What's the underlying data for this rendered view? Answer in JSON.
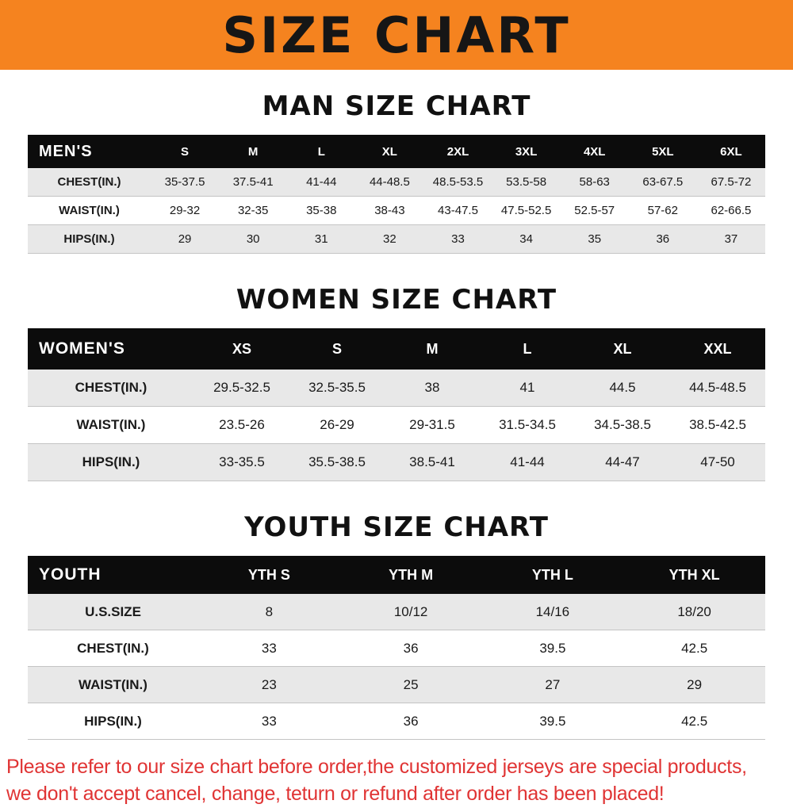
{
  "banner": {
    "title": "SIZE CHART",
    "background_color": "#f5831f"
  },
  "sections": [
    {
      "id": "mens",
      "title": "MAN SIZE CHART",
      "table": {
        "header_label": "MEN'S",
        "columns": [
          "S",
          "M",
          "L",
          "XL",
          "2XL",
          "3XL",
          "4XL",
          "5XL",
          "6XL"
        ],
        "rows": [
          {
            "label": "CHEST(IN.)",
            "values": [
              "35-37.5",
              "37.5-41",
              "41-44",
              "44-48.5",
              "48.5-53.5",
              "53.5-58",
              "58-63",
              "63-67.5",
              "67.5-72"
            ]
          },
          {
            "label": "WAIST(IN.)",
            "values": [
              "29-32",
              "32-35",
              "35-38",
              "38-43",
              "43-47.5",
              "47.5-52.5",
              "52.5-57",
              "57-62",
              "62-66.5"
            ]
          },
          {
            "label": "HIPS(IN.)",
            "values": [
              "29",
              "30",
              "31",
              "32",
              "33",
              "34",
              "35",
              "36",
              "37"
            ]
          }
        ]
      }
    },
    {
      "id": "womens",
      "title": "WOMEN SIZE CHART",
      "table": {
        "header_label": "WOMEN'S",
        "columns": [
          "XS",
          "S",
          "M",
          "L",
          "XL",
          "XXL"
        ],
        "rows": [
          {
            "label": "CHEST(IN.)",
            "values": [
              "29.5-32.5",
              "32.5-35.5",
              "38",
              "41",
              "44.5",
              "44.5-48.5"
            ]
          },
          {
            "label": "WAIST(IN.)",
            "values": [
              "23.5-26",
              "26-29",
              "29-31.5",
              "31.5-34.5",
              "34.5-38.5",
              "38.5-42.5"
            ]
          },
          {
            "label": "HIPS(IN.)",
            "values": [
              "33-35.5",
              "35.5-38.5",
              "38.5-41",
              "41-44",
              "44-47",
              "47-50"
            ]
          }
        ]
      }
    },
    {
      "id": "youth",
      "title": "YOUTH SIZE CHART",
      "table": {
        "header_label": "YOUTH",
        "columns": [
          "YTH S",
          "YTH M",
          "YTH L",
          "YTH XL"
        ],
        "rows": [
          {
            "label": "U.S.SIZE",
            "values": [
              "8",
              "10/12",
              "14/16",
              "18/20"
            ]
          },
          {
            "label": "CHEST(IN.)",
            "values": [
              "33",
              "36",
              "39.5",
              "42.5"
            ]
          },
          {
            "label": "WAIST(IN.)",
            "values": [
              "23",
              "25",
              "27",
              "29"
            ]
          },
          {
            "label": "HIPS(IN.)",
            "values": [
              "33",
              "36",
              "39.5",
              "42.5"
            ]
          }
        ]
      }
    }
  ],
  "footer": {
    "lines": [
      "Please refer to our size chart before order,the customized jerseys are special products,",
      "we don't accept cancel, change, teturn or refund after order has been placed!"
    ],
    "color": "#e03434"
  }
}
